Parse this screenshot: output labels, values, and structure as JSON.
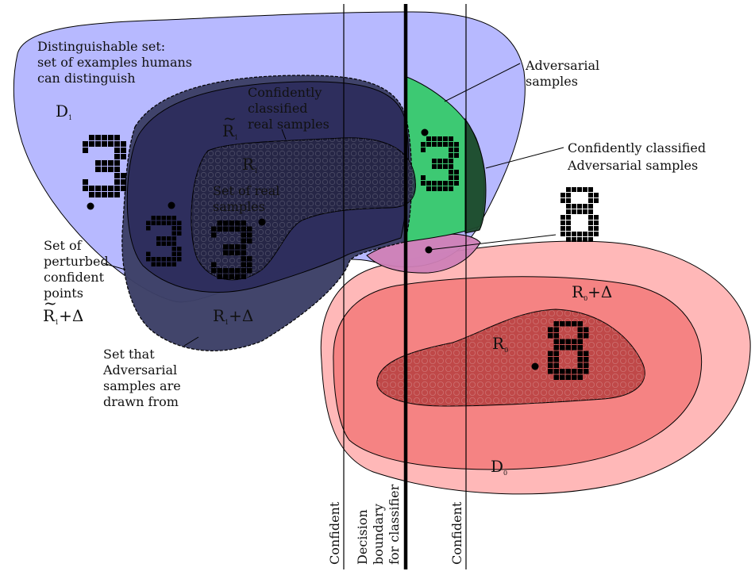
{
  "labels": {
    "distinguishable": [
      "Distinguishable set:",
      "set of examples humans",
      "can distinguish"
    ],
    "conf_real": [
      "Confidently",
      "classified",
      "real samples"
    ],
    "real": [
      "Set of real",
      "samples"
    ],
    "adversarial": [
      "Adversarial",
      "samples"
    ],
    "conf_adv": [
      "Confidently classified",
      "Adversarial samples"
    ],
    "perturbed": [
      "Set of",
      "perturbed",
      "confident",
      "points"
    ],
    "drawn_from": [
      "Set that",
      "Adversarial",
      "samples are",
      "drawn from"
    ],
    "confident_left": "Confident",
    "decision": [
      "Decision",
      "boundary",
      "for classifier"
    ],
    "confident_right": "Confident"
  },
  "symbols": {
    "D1": {
      "base": "D",
      "sub": "1"
    },
    "R1_tilde": {
      "base": "R",
      "sub": "1"
    },
    "R1": {
      "base": "R",
      "sub": "1"
    },
    "R1_tilde_delta": {
      "base": "R",
      "sub": "1",
      "rest": "+Δ"
    },
    "R1_delta": {
      "base": "R",
      "sub": "1",
      "rest": "+Δ"
    },
    "R0_delta": {
      "base": "R",
      "sub": "0",
      "rest": "+Δ"
    },
    "R0": {
      "base": "R",
      "sub": "0"
    },
    "D0": {
      "base": "D",
      "sub": "0"
    }
  },
  "digits": [
    "3",
    "3",
    "3",
    "3",
    "8",
    "8"
  ],
  "colors": {
    "D1": "#b3b5ff",
    "R1_delta": "#3c3f66",
    "R1_tilde": "#2c2d5c",
    "R1": "#252543",
    "adversarial": "#3dc973",
    "conf_adv": "#1f4a2e",
    "overlap": "#cf7fb6",
    "D0": "#ffb8b8",
    "R0_delta": "#f58383",
    "R0": "#bf4848",
    "boundary": "#000000"
  }
}
